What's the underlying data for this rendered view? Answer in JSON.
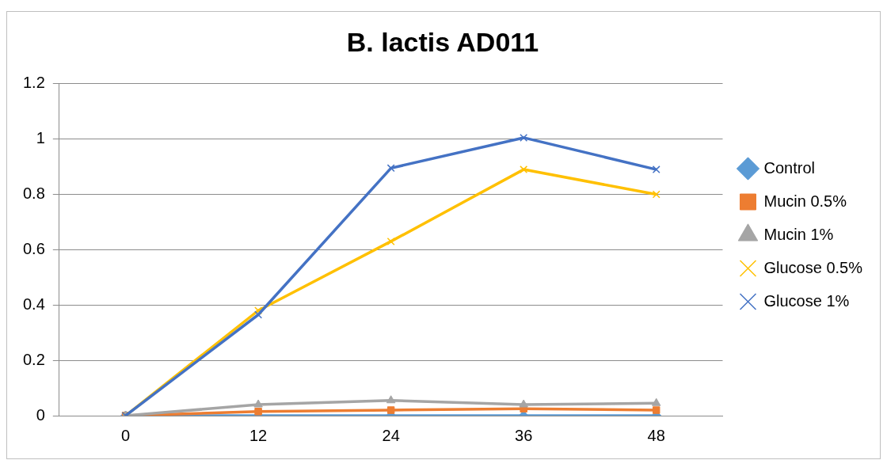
{
  "chart_data": {
    "type": "line",
    "title": "B. lactis AD011",
    "categories": [
      "0",
      "12",
      "24",
      "36",
      "48"
    ],
    "series": [
      {
        "name": "Control",
        "color": "#5b9bd5",
        "marker": "diamond",
        "values": [
          0,
          0,
          0,
          0,
          0
        ]
      },
      {
        "name": "Mucin 0.5%",
        "color": "#ed7d31",
        "marker": "square",
        "values": [
          0,
          0.015,
          0.02,
          0.025,
          0.02
        ]
      },
      {
        "name": "Mucin 1%",
        "color": "#a5a5a5",
        "marker": "triangle",
        "values": [
          0,
          0.04,
          0.055,
          0.04,
          0.045
        ]
      },
      {
        "name": "Glucose 0.5%",
        "color": "#ffc000",
        "marker": "cross",
        "values": [
          0,
          0.38,
          0.63,
          0.89,
          0.8
        ]
      },
      {
        "name": "Glucose 1%",
        "color": "#4472c4",
        "marker": "cross",
        "values": [
          0,
          0.365,
          0.895,
          1.005,
          0.89
        ]
      }
    ],
    "ylim": [
      0,
      1.2
    ],
    "yticks": [
      0,
      0.2,
      0.4,
      0.6,
      0.8,
      1,
      1.2
    ],
    "grid": "y",
    "legend": "right"
  }
}
